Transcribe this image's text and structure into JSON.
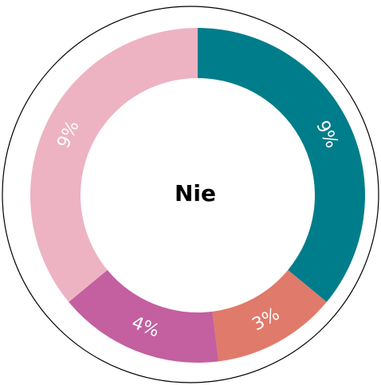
{
  "chart_data": {
    "type": "donut",
    "title": "Nie",
    "values": [
      9,
      3,
      4,
      9
    ],
    "value_labels": [
      "9%",
      "3%",
      "4%",
      "9%"
    ],
    "colors": [
      "#007d8a",
      "#e07a6a",
      "#c45fa0",
      "#edb3c3"
    ]
  }
}
